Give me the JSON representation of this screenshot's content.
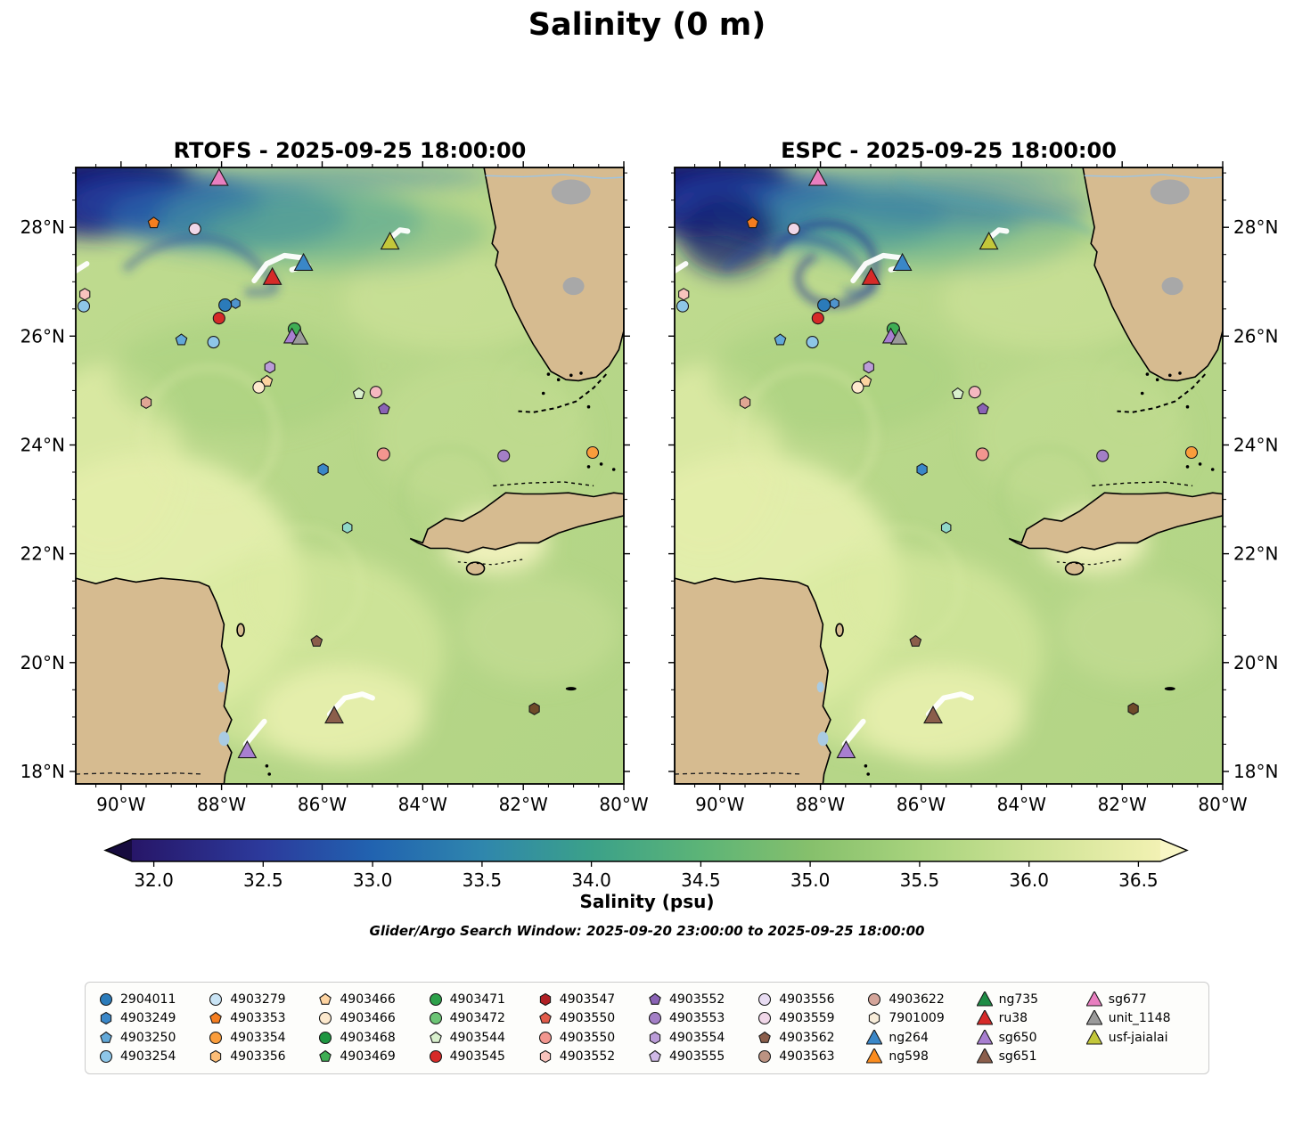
{
  "chart_data": {
    "type": "scatter",
    "title": "Salinity (0 m)",
    "search_window": "Glider/Argo Search Window: 2025-09-20 23:00:00 to 2025-09-25 18:00:00",
    "panels": [
      {
        "id": "rtofs",
        "title": "RTOFS - 2025-09-25 18:00:00",
        "y_labels_side": "left"
      },
      {
        "id": "espc",
        "title": "ESPC - 2025-09-25 18:00:00",
        "y_labels_side": "right"
      }
    ],
    "axes": {
      "lon_range": [
        -90.9,
        -80.0
      ],
      "lat_range": [
        17.77,
        29.1
      ],
      "x_ticks": [
        {
          "v": -90,
          "label": "90°W"
        },
        {
          "v": -88,
          "label": "88°W"
        },
        {
          "v": -86,
          "label": "86°W"
        },
        {
          "v": -84,
          "label": "84°W"
        },
        {
          "v": -82,
          "label": "82°W"
        },
        {
          "v": -80,
          "label": "80°W"
        }
      ],
      "y_ticks": [
        {
          "v": 18,
          "label": "18°N"
        },
        {
          "v": 20,
          "label": "20°N"
        },
        {
          "v": 22,
          "label": "22°N"
        },
        {
          "v": 24,
          "label": "24°N"
        },
        {
          "v": 26,
          "label": "26°N"
        },
        {
          "v": 28,
          "label": "28°N"
        }
      ],
      "grid": false
    },
    "colorbar": {
      "label": "Salinity (psu)",
      "range": [
        31.9,
        36.6
      ],
      "tip_left": "#160b3e",
      "tip_right": "#f8f6c6",
      "stops": [
        [
          0.0,
          "#271668"
        ],
        [
          0.128,
          "#2c3a9c"
        ],
        [
          0.234,
          "#2163b0"
        ],
        [
          0.34,
          "#2f86ad"
        ],
        [
          0.447,
          "#3ba189"
        ],
        [
          0.553,
          "#5cb477"
        ],
        [
          0.66,
          "#86c06c"
        ],
        [
          0.766,
          "#a8d37d"
        ],
        [
          0.872,
          "#cce294"
        ],
        [
          0.979,
          "#ecefad"
        ],
        [
          1.0,
          "#f2f1b4"
        ]
      ],
      "ticks": [
        {
          "v": 32.0,
          "label": "32.0"
        },
        {
          "v": 32.5,
          "label": "32.5"
        },
        {
          "v": 33.0,
          "label": "33.0"
        },
        {
          "v": 33.5,
          "label": "33.5"
        },
        {
          "v": 34.0,
          "label": "34.0"
        },
        {
          "v": 34.5,
          "label": "34.5"
        },
        {
          "v": 35.0,
          "label": "35.0"
        },
        {
          "v": 35.5,
          "label": "35.5"
        },
        {
          "v": 36.0,
          "label": "36.0"
        },
        {
          "v": 36.5,
          "label": "36.5"
        }
      ]
    },
    "legend": [
      {
        "label": "2904011",
        "shape": "circle",
        "color": "#2b7bba"
      },
      {
        "label": "4903249",
        "shape": "hexagon",
        "color": "#3a87c8"
      },
      {
        "label": "4903250",
        "shape": "pentagon",
        "color": "#62a8d8"
      },
      {
        "label": "4903254",
        "shape": "circle",
        "color": "#8ec6e8"
      },
      {
        "label": "4903279",
        "shape": "circle",
        "color": "#c9e4f5"
      },
      {
        "label": "4903353",
        "shape": "pentagon",
        "color": "#f57e20"
      },
      {
        "label": "4903354",
        "shape": "circle",
        "color": "#fa9d3c"
      },
      {
        "label": "4903356",
        "shape": "hexagon",
        "color": "#fbbd77"
      },
      {
        "label": "4903466",
        "shape": "pentagon",
        "color": "#fdd3a0"
      },
      {
        "label": "4903466",
        "shape": "circle",
        "color": "#fde9cd"
      },
      {
        "label": "4903468",
        "shape": "circle",
        "color": "#1e9641"
      },
      {
        "label": "4903469",
        "shape": "pentagon",
        "color": "#3fae54"
      },
      {
        "label": "4903471",
        "shape": "circle",
        "color": "#2da04a"
      },
      {
        "label": "4903472",
        "shape": "circle",
        "color": "#6cc575"
      },
      {
        "label": "4903544",
        "shape": "pentagon",
        "color": "#d9f0cd"
      },
      {
        "label": "4903545",
        "shape": "circle",
        "color": "#d62a28"
      },
      {
        "label": "4903547",
        "shape": "hexagon",
        "color": "#b01f24"
      },
      {
        "label": "4903550",
        "shape": "pentagon",
        "color": "#e25b4a"
      },
      {
        "label": "4903550",
        "shape": "circle",
        "color": "#f2968f"
      },
      {
        "label": "4903552",
        "shape": "hexagon",
        "color": "#f8c3bd"
      },
      {
        "label": "4903552",
        "shape": "pentagon",
        "color": "#8a63b5"
      },
      {
        "label": "4903553",
        "shape": "circle",
        "color": "#a37fc6"
      },
      {
        "label": "4903554",
        "shape": "hexagon",
        "color": "#bb9cd8"
      },
      {
        "label": "4903555",
        "shape": "pentagon",
        "color": "#d0b9e6"
      },
      {
        "label": "4903556",
        "shape": "circle",
        "color": "#e8dcf2"
      },
      {
        "label": "4903559",
        "shape": "circle",
        "color": "#f0d7e8"
      },
      {
        "label": "4903562",
        "shape": "pentagon",
        "color": "#8b5e4b"
      },
      {
        "label": "4903563",
        "shape": "circle",
        "color": "#bc9382"
      },
      {
        "label": "4903622",
        "shape": "circle",
        "color": "#d4a59a"
      },
      {
        "label": "7901009",
        "shape": "hexagon",
        "color": "#f7ecd9"
      },
      {
        "label": "ng264",
        "shape": "triangle",
        "color": "#3a87c8"
      },
      {
        "label": "ng598",
        "shape": "triangle",
        "color": "#fb8c1e"
      },
      {
        "label": "ng735",
        "shape": "triangle",
        "color": "#1e8c45"
      },
      {
        "label": "ru38",
        "shape": "triangle",
        "color": "#d62a28"
      },
      {
        "label": "sg650",
        "shape": "triangle",
        "color": "#a87fd0"
      },
      {
        "label": "sg651",
        "shape": "triangle",
        "color": "#8b5e4b"
      },
      {
        "label": "sg677",
        "shape": "triangle",
        "color": "#e87fc0"
      },
      {
        "label": "unit_1148",
        "shape": "triangle",
        "color": "#9a9a9a"
      },
      {
        "label": "usf-jaialai",
        "shape": "triangle",
        "color": "#c3c73a"
      }
    ],
    "markers": [
      {
        "lon": -88.05,
        "lat": 28.9,
        "shape": "triangle",
        "color": "#e87fc0",
        "size": 17
      },
      {
        "lon": -89.35,
        "lat": 28.08,
        "shape": "pentagon",
        "color": "#f57e20",
        "size": 13
      },
      {
        "lon": -88.53,
        "lat": 27.97,
        "shape": "circle",
        "color": "#f0d7e8",
        "size": 13
      },
      {
        "lon": -84.65,
        "lat": 27.73,
        "shape": "triangle",
        "color": "#c3c73a",
        "size": 17
      },
      {
        "lon": -86.37,
        "lat": 27.34,
        "shape": "triangle",
        "color": "#3a87c8",
        "size": 17
      },
      {
        "lon": -86.99,
        "lat": 27.08,
        "shape": "triangle",
        "color": "#d62a28",
        "size": 17
      },
      {
        "lon": -90.72,
        "lat": 26.77,
        "shape": "hexagon",
        "color": "#f8c3bd",
        "size": 13
      },
      {
        "lon": -90.74,
        "lat": 26.55,
        "shape": "circle",
        "color": "#8ec6e8",
        "size": 13
      },
      {
        "lon": -87.93,
        "lat": 26.57,
        "shape": "circle",
        "color": "#2b7bba",
        "size": 14
      },
      {
        "lon": -87.72,
        "lat": 26.6,
        "shape": "hexagon",
        "color": "#4f94cd",
        "size": 11
      },
      {
        "lon": -88.05,
        "lat": 26.33,
        "shape": "circle",
        "color": "#d62a28",
        "size": 13
      },
      {
        "lon": -86.55,
        "lat": 26.13,
        "shape": "circle",
        "color": "#3fae54",
        "size": 14
      },
      {
        "lon": -86.6,
        "lat": 25.99,
        "shape": "triangle",
        "color": "#a87fd0",
        "size": 15
      },
      {
        "lon": -86.44,
        "lat": 25.97,
        "shape": "triangle",
        "color": "#9a9a9a",
        "size": 15
      },
      {
        "lon": -88.8,
        "lat": 25.93,
        "shape": "pentagon",
        "color": "#62a8d8",
        "size": 13
      },
      {
        "lon": -88.16,
        "lat": 25.89,
        "shape": "circle",
        "color": "#8ec6e8",
        "size": 13
      },
      {
        "lon": -87.04,
        "lat": 25.43,
        "shape": "hexagon",
        "color": "#bb9cd8",
        "size": 13
      },
      {
        "lon": -87.1,
        "lat": 25.17,
        "shape": "pentagon",
        "color": "#fdd3a0",
        "size": 13
      },
      {
        "lon": -87.26,
        "lat": 25.06,
        "shape": "circle",
        "color": "#fde9cd",
        "size": 13
      },
      {
        "lon": -89.5,
        "lat": 24.78,
        "shape": "hexagon",
        "color": "#e0a694",
        "size": 13
      },
      {
        "lon": -85.27,
        "lat": 24.94,
        "shape": "pentagon",
        "color": "#d9f0cd",
        "size": 13
      },
      {
        "lon": -84.93,
        "lat": 24.97,
        "shape": "circle",
        "color": "#f5b8c0",
        "size": 13
      },
      {
        "lon": -84.77,
        "lat": 24.66,
        "shape": "pentagon",
        "color": "#8a63b5",
        "size": 13
      },
      {
        "lon": -84.78,
        "lat": 23.83,
        "shape": "circle",
        "color": "#f2968f",
        "size": 14
      },
      {
        "lon": -82.39,
        "lat": 23.8,
        "shape": "circle",
        "color": "#a37fc6",
        "size": 13
      },
      {
        "lon": -80.62,
        "lat": 23.86,
        "shape": "circle",
        "color": "#fa9d3c",
        "size": 13
      },
      {
        "lon": -85.98,
        "lat": 23.55,
        "shape": "hexagon",
        "color": "#3a87c8",
        "size": 13
      },
      {
        "lon": -85.5,
        "lat": 22.48,
        "shape": "hexagon",
        "color": "#8fd8c8",
        "size": 12
      },
      {
        "lon": -86.11,
        "lat": 20.39,
        "shape": "pentagon",
        "color": "#8b5e4b",
        "size": 13
      },
      {
        "lon": -85.76,
        "lat": 19.02,
        "shape": "triangle",
        "color": "#8b5e4b",
        "size": 17
      },
      {
        "lon": -87.49,
        "lat": 18.38,
        "shape": "triangle",
        "color": "#a87fd0",
        "size": 17
      },
      {
        "lon": -81.78,
        "lat": 19.15,
        "shape": "hexagon",
        "color": "#6f4b2a",
        "size": 13
      }
    ],
    "glider_tracks": [
      [
        [
          -87.35,
          27.02
        ],
        [
          -87.1,
          27.33
        ],
        [
          -86.75,
          27.48
        ],
        [
          -86.4,
          27.44
        ],
        [
          -86.28,
          27.3
        ],
        [
          -86.6,
          27.22
        ]
      ],
      [
        [
          -84.62,
          27.82
        ],
        [
          -84.45,
          27.95
        ],
        [
          -84.3,
          27.93
        ]
      ],
      [
        [
          -90.9,
          27.2
        ],
        [
          -90.68,
          27.33
        ]
      ],
      [
        [
          -85.85,
          19.05
        ],
        [
          -85.55,
          19.35
        ],
        [
          -85.2,
          19.42
        ],
        [
          -85.0,
          19.35
        ]
      ],
      [
        [
          -87.52,
          18.5
        ],
        [
          -87.3,
          18.75
        ],
        [
          -87.15,
          18.92
        ]
      ]
    ]
  }
}
